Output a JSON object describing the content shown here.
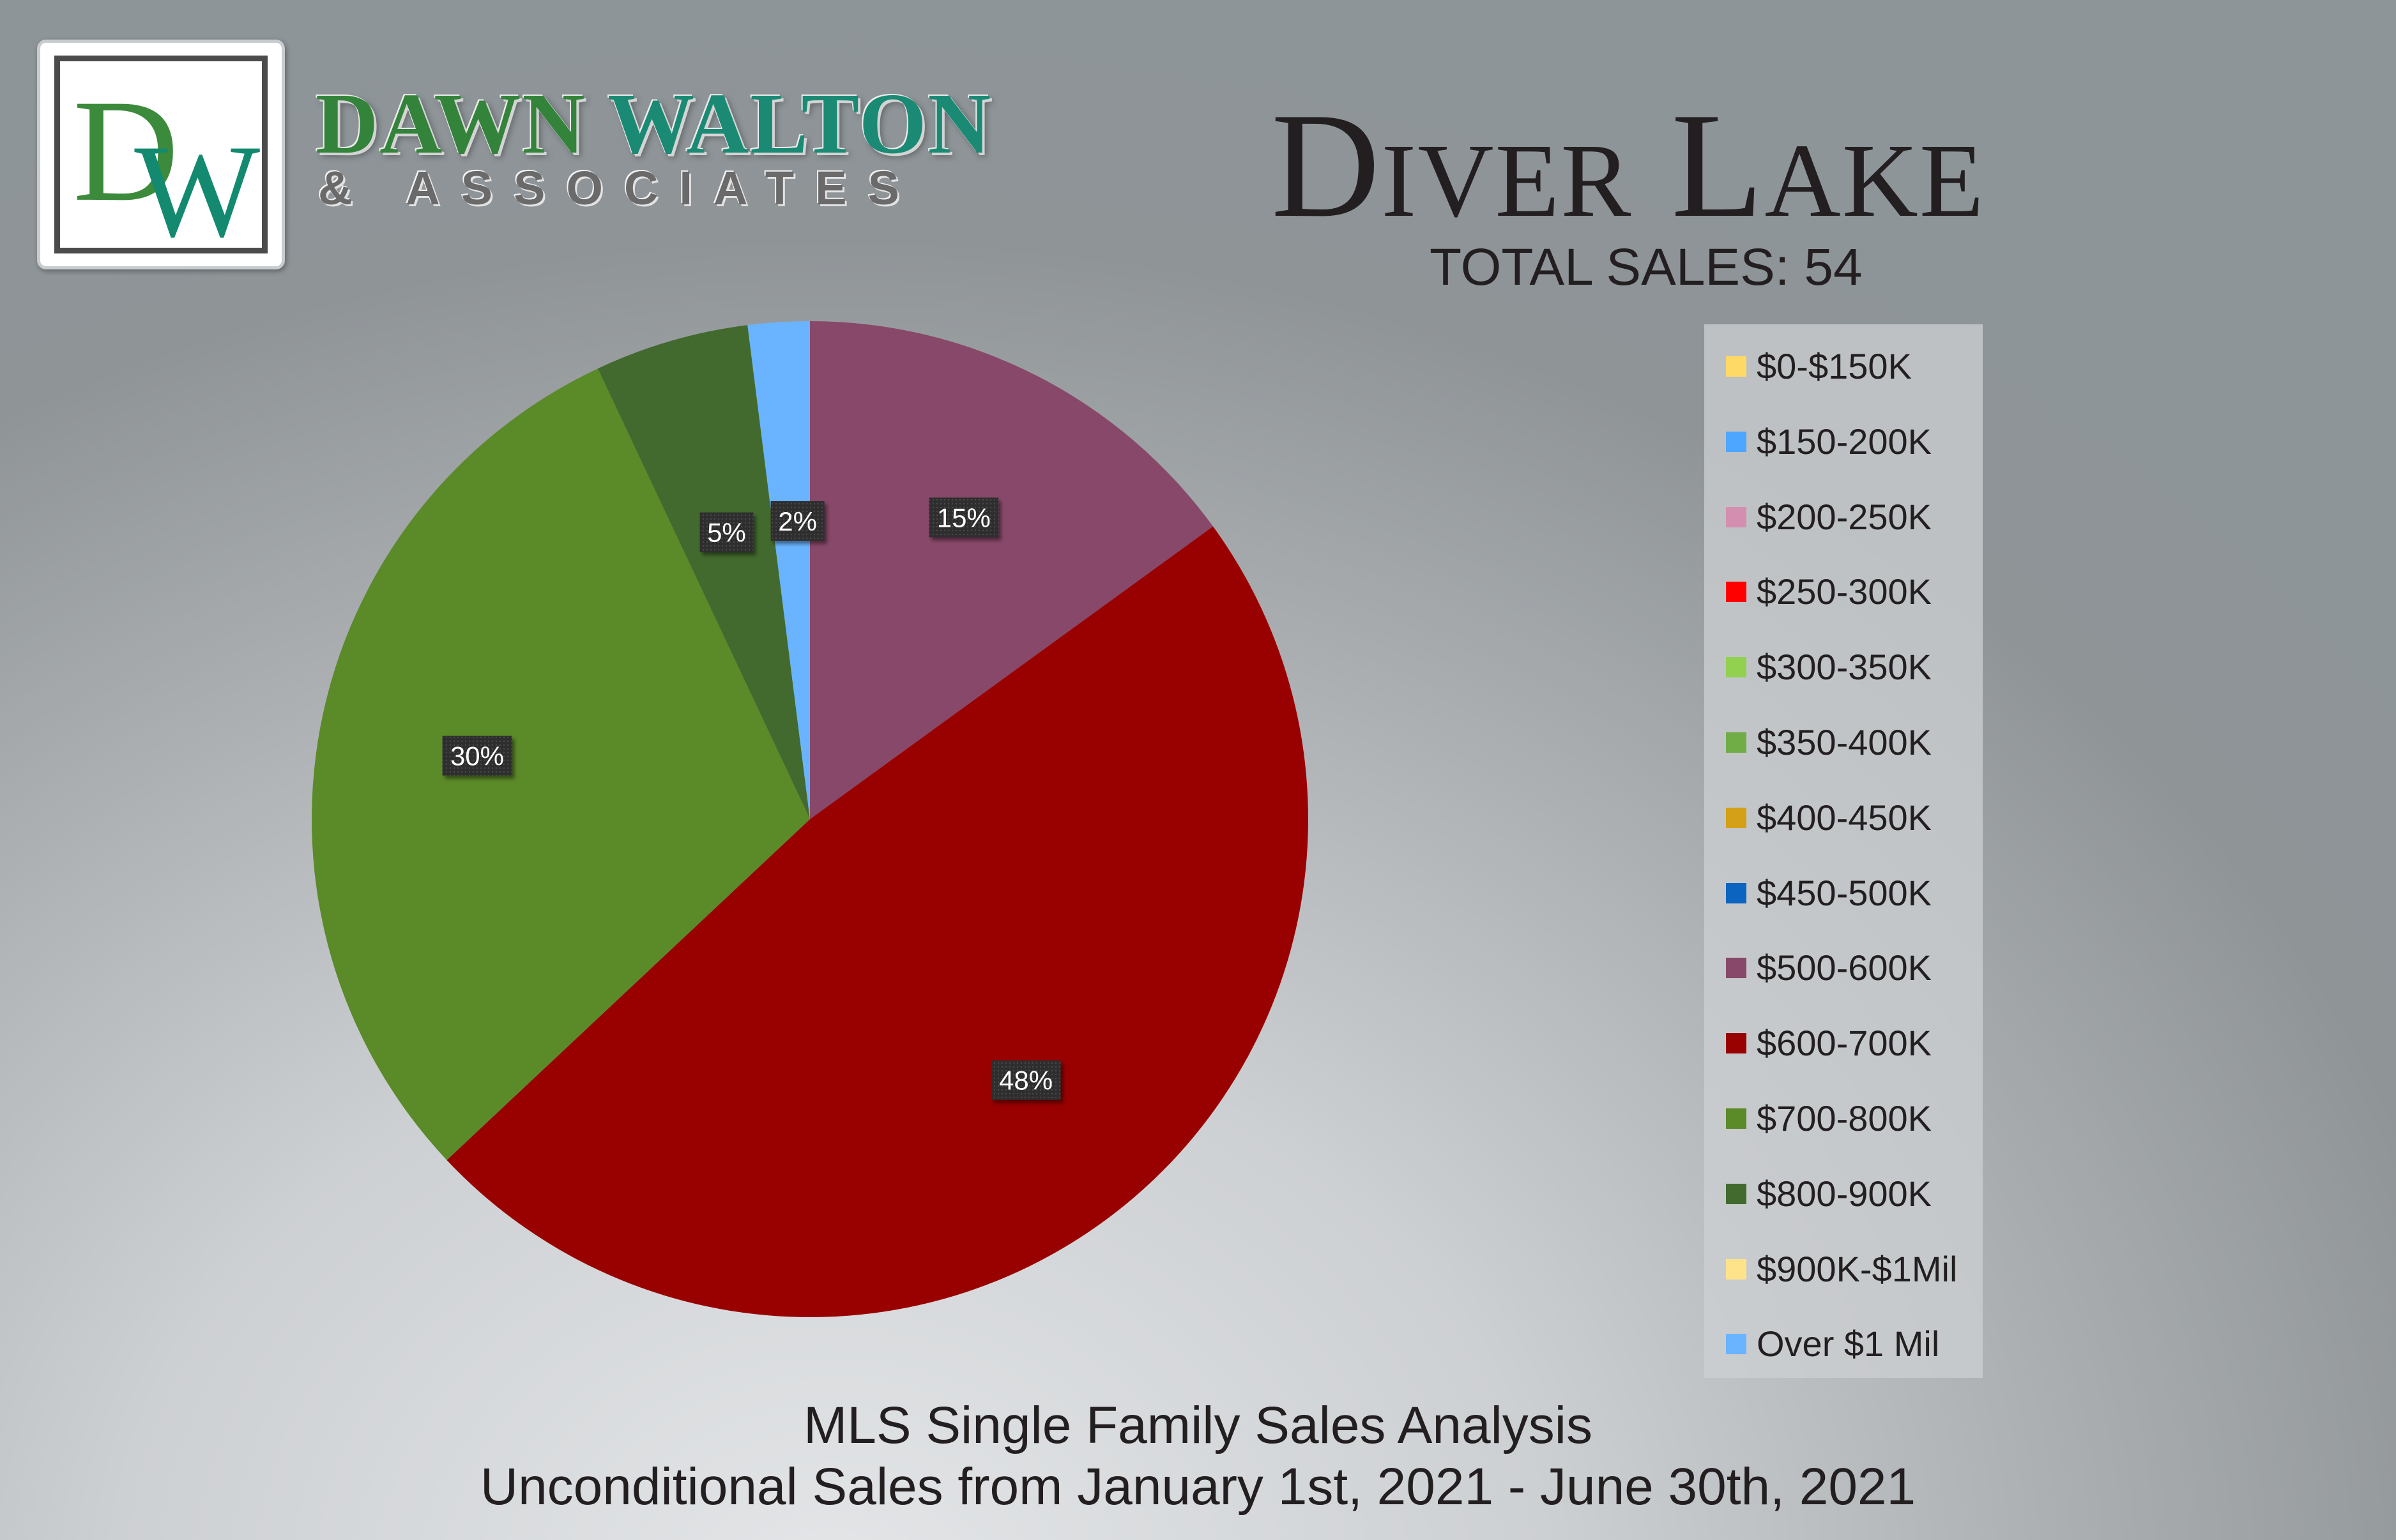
{
  "brand": {
    "logo_monogram": "DW",
    "name_first": "DAWN",
    "name_last": "WALTON",
    "sub": "& ASSOCIATES"
  },
  "title": "Diver Lake",
  "total_sales": "TOTAL SALES: 54",
  "footer": {
    "line1": "MLS Single Family Sales Analysis",
    "line2": "Unconditional Sales from January 1st, 2021 - June 30th, 2021"
  },
  "chart_data": {
    "type": "pie",
    "start": "top",
    "direction": "clockwise",
    "legend_position": "right",
    "slices": [
      {
        "name": "$0-$150K",
        "value": 0,
        "color": "#ffd966"
      },
      {
        "name": "$150-200K",
        "value": 0,
        "color": "#4da6ff"
      },
      {
        "name": "$200-250K",
        "value": 0,
        "color": "#d48fb0"
      },
      {
        "name": "$250-300K",
        "value": 0,
        "color": "#ff0000"
      },
      {
        "name": "$300-350K",
        "value": 0,
        "color": "#92d050"
      },
      {
        "name": "$350-400K",
        "value": 0,
        "color": "#70ad47"
      },
      {
        "name": "$400-450K",
        "value": 0,
        "color": "#d4a017"
      },
      {
        "name": "$450-500K",
        "value": 0,
        "color": "#0a64c0"
      },
      {
        "name": "$500-600K",
        "value": 15,
        "label": "15%",
        "color": "#884869"
      },
      {
        "name": "$600-700K",
        "value": 48,
        "label": "48%",
        "color": "#990000"
      },
      {
        "name": "$700-800K",
        "value": 30,
        "label": "30%",
        "color": "#5b8a28"
      },
      {
        "name": "$800-900K",
        "value": 5,
        "label": "5%",
        "color": "#426a2e"
      },
      {
        "name": "$900K-$1Mil",
        "value": 0,
        "color": "#ffe38a"
      },
      {
        "name": "Over $1 Mil",
        "value": 2,
        "label": "2%",
        "color": "#6ab4ff"
      }
    ]
  }
}
